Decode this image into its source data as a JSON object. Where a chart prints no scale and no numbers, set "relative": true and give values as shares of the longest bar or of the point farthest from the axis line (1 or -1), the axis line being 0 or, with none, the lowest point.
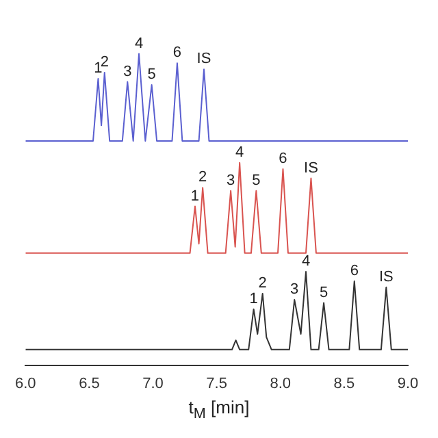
{
  "chart_data": {
    "type": "line",
    "relative": true,
    "xlabel": "t$_{M}$ [min]",
    "marker": "none",
    "grid": false,
    "legend": false,
    "xlim": [
      6.0,
      9.0
    ],
    "xticks": [
      {
        "value": 6.0,
        "label": "6.0"
      },
      {
        "value": 6.5,
        "label": "6.5"
      },
      {
        "value": 7.0,
        "label": "7.0"
      },
      {
        "value": 7.5,
        "label": "7.5"
      },
      {
        "value": 8.0,
        "label": "8.0"
      },
      {
        "value": 8.5,
        "label": "8.5"
      },
      {
        "value": 9.0,
        "label": "9.0"
      }
    ],
    "series": [
      {
        "color": "#5a5fd0",
        "x": [
          6.0,
          6.53,
          6.57,
          6.595,
          6.62,
          6.66,
          6.76,
          6.8,
          6.845,
          6.89,
          6.94,
          6.99,
          7.03,
          7.15,
          7.19,
          7.23,
          7.36,
          7.4,
          7.44,
          9.0
        ],
        "values": [
          0.72,
          0.72,
          0.92,
          0.77,
          0.94,
          0.72,
          0.72,
          0.91,
          0.72,
          1.0,
          0.72,
          0.9,
          0.72,
          0.72,
          0.97,
          0.72,
          0.72,
          0.95,
          0.72,
          0.72
        ]
      },
      {
        "color": "#d9534f",
        "x": [
          6.0,
          7.29,
          7.33,
          7.36,
          7.39,
          7.43,
          7.57,
          7.61,
          7.645,
          7.68,
          7.72,
          7.77,
          7.81,
          7.85,
          7.98,
          8.02,
          8.06,
          8.2,
          8.24,
          8.28,
          9.0
        ],
        "values": [
          0.36,
          0.36,
          0.51,
          0.39,
          0.57,
          0.36,
          0.36,
          0.56,
          0.38,
          0.65,
          0.36,
          0.36,
          0.56,
          0.36,
          0.36,
          0.63,
          0.36,
          0.36,
          0.6,
          0.36,
          0.36
        ]
      },
      {
        "color": "#333333",
        "x": [
          6.0,
          7.55,
          7.62,
          7.65,
          7.68,
          7.75,
          7.79,
          7.82,
          7.86,
          7.89,
          7.93,
          8.07,
          8.11,
          8.16,
          8.2,
          8.24,
          8.3,
          8.34,
          8.38,
          8.54,
          8.58,
          8.62,
          8.79,
          8.83,
          8.87,
          9.0
        ],
        "values": [
          0.05,
          0.05,
          0.05,
          0.08,
          0.05,
          0.05,
          0.18,
          0.1,
          0.23,
          0.09,
          0.05,
          0.05,
          0.21,
          0.1,
          0.3,
          0.05,
          0.05,
          0.2,
          0.05,
          0.05,
          0.27,
          0.05,
          0.05,
          0.25,
          0.05,
          0.05
        ]
      }
    ],
    "annotations": [
      {
        "text": "1",
        "x": 6.57,
        "y": 0.92
      },
      {
        "text": "2",
        "x": 6.62,
        "y": 0.94
      },
      {
        "text": "3",
        "x": 6.8,
        "y": 0.91
      },
      {
        "text": "4",
        "x": 6.89,
        "y": 1.0
      },
      {
        "text": "5",
        "x": 6.99,
        "y": 0.9
      },
      {
        "text": "6",
        "x": 7.19,
        "y": 0.97
      },
      {
        "text": "IS",
        "x": 7.4,
        "y": 0.95
      },
      {
        "text": "1",
        "x": 7.33,
        "y": 0.51
      },
      {
        "text": "2",
        "x": 7.39,
        "y": 0.57
      },
      {
        "text": "3",
        "x": 7.61,
        "y": 0.56
      },
      {
        "text": "4",
        "x": 7.68,
        "y": 0.65
      },
      {
        "text": "5",
        "x": 7.81,
        "y": 0.56
      },
      {
        "text": "6",
        "x": 8.02,
        "y": 0.63
      },
      {
        "text": "IS",
        "x": 8.24,
        "y": 0.6
      },
      {
        "text": "1",
        "x": 7.79,
        "y": 0.18
      },
      {
        "text": "2",
        "x": 7.86,
        "y": 0.23
      },
      {
        "text": "3",
        "x": 8.11,
        "y": 0.21
      },
      {
        "text": "4",
        "x": 8.2,
        "y": 0.3
      },
      {
        "text": "5",
        "x": 8.34,
        "y": 0.2
      },
      {
        "text": "6",
        "x": 8.58,
        "y": 0.27
      },
      {
        "text": "IS",
        "x": 8.83,
        "y": 0.25
      }
    ]
  }
}
